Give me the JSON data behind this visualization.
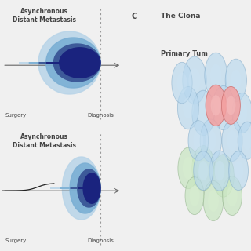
{
  "bg_color": "#f0f0f0",
  "title_top": "Asynchronous\nDistant Metastasis",
  "title_bottom": "Asynchronous\nDistant Metastasis",
  "xlabel_left": "Surgery",
  "xlabel_right": "Diagnosis",
  "dark_blue": "#1a237e",
  "mid_blue": "#283593",
  "steel_blue": "#3d5a99",
  "light_blue": "#7bafd4",
  "very_light_blue": "#b8d4e8",
  "text_color": "#444444",
  "axis_color": "#666666",
  "dashed_color": "#999999",
  "label_c": "C",
  "label_clona": "The Clona",
  "label_primary": "Primary Tum"
}
